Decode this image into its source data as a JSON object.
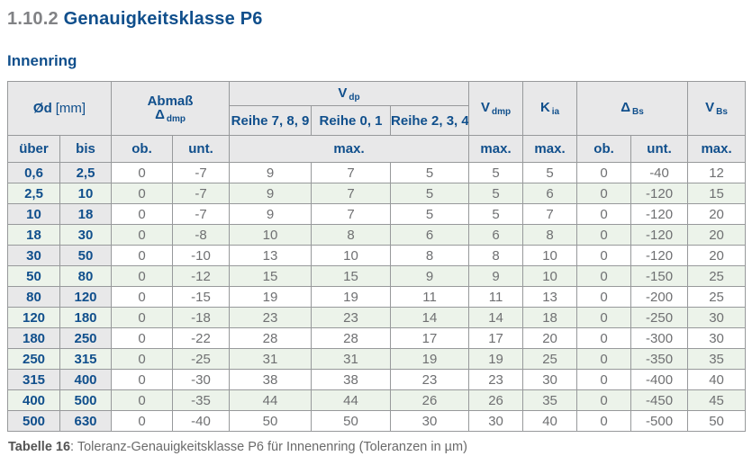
{
  "page": {
    "title_number": "1.10.2",
    "title_text": "Genauigkeitsklasse P6",
    "subtitle": "Innenring",
    "caption_label": "Tabelle 16",
    "caption_text": ": Toleranz-Genauigkeitsklasse P6 für Innenenring (Toleranzen in µm)"
  },
  "colors": {
    "accent_blue": "#104f8c",
    "title_gray": "#818285",
    "header_bg": "#e8e8e9",
    "row_green": "#ecf3ea",
    "border_gray": "#97999b",
    "data_text": "#6f7072"
  },
  "table": {
    "header": {
      "d": {
        "bold": "Ød",
        "unit": "[mm]"
      },
      "abmass": {
        "title": "Abmaß",
        "sym": "Δ",
        "sub": "dmp"
      },
      "vdp": {
        "sym": "V",
        "sub": "dp"
      },
      "reihe": [
        "Reihe 7, 8, 9",
        "Reihe 0, 1",
        "Reihe 2, 3, 4"
      ],
      "vdmp": {
        "sym": "V",
        "sub": "dmp"
      },
      "kia": {
        "sym": "K",
        "sub": "ia"
      },
      "dbs": {
        "sym": "Δ",
        "sub": "Bs"
      },
      "vbs": {
        "sym": "V",
        "sub": "Bs"
      },
      "row2": {
        "ueber": "über",
        "bis": "bis",
        "ob1": "ob.",
        "unt1": "unt.",
        "max_vdp": "max.",
        "max_vdmp": "max.",
        "max_kia": "max.",
        "ob2": "ob.",
        "unt2": "unt.",
        "max_vbs": "max."
      }
    },
    "rows": [
      [
        "0,6",
        "2,5",
        "0",
        "-7",
        "9",
        "7",
        "5",
        "5",
        "5",
        "0",
        "-40",
        "12"
      ],
      [
        "2,5",
        "10",
        "0",
        "-7",
        "9",
        "7",
        "5",
        "5",
        "6",
        "0",
        "-120",
        "15"
      ],
      [
        "10",
        "18",
        "0",
        "-7",
        "9",
        "7",
        "5",
        "5",
        "7",
        "0",
        "-120",
        "20"
      ],
      [
        "18",
        "30",
        "0",
        "-8",
        "10",
        "8",
        "6",
        "6",
        "8",
        "0",
        "-120",
        "20"
      ],
      [
        "30",
        "50",
        "0",
        "-10",
        "13",
        "10",
        "8",
        "8",
        "10",
        "0",
        "-120",
        "20"
      ],
      [
        "50",
        "80",
        "0",
        "-12",
        "15",
        "15",
        "9",
        "9",
        "10",
        "0",
        "-150",
        "25"
      ],
      [
        "80",
        "120",
        "0",
        "-15",
        "19",
        "19",
        "11",
        "11",
        "13",
        "0",
        "-200",
        "25"
      ],
      [
        "120",
        "180",
        "0",
        "-18",
        "23",
        "23",
        "14",
        "14",
        "18",
        "0",
        "-250",
        "30"
      ],
      [
        "180",
        "250",
        "0",
        "-22",
        "28",
        "28",
        "17",
        "17",
        "20",
        "0",
        "-300",
        "30"
      ],
      [
        "250",
        "315",
        "0",
        "-25",
        "31",
        "31",
        "19",
        "19",
        "25",
        "0",
        "-350",
        "35"
      ],
      [
        "315",
        "400",
        "0",
        "-30",
        "38",
        "38",
        "23",
        "23",
        "30",
        "0",
        "-400",
        "40"
      ],
      [
        "400",
        "500",
        "0",
        "-35",
        "44",
        "44",
        "26",
        "26",
        "35",
        "0",
        "-450",
        "45"
      ],
      [
        "500",
        "630",
        "0",
        "-40",
        "50",
        "50",
        "30",
        "30",
        "40",
        "0",
        "-500",
        "50"
      ]
    ]
  }
}
